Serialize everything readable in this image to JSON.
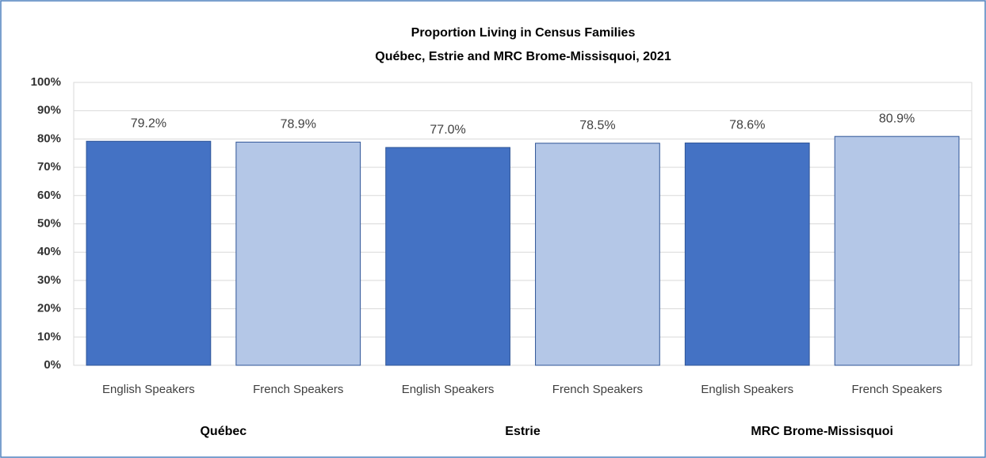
{
  "chart_data": {
    "type": "bar",
    "title": "Proportion Living in Census Families",
    "subtitle": "Québec, Estrie and MRC Brome-Missisquoi,  2021",
    "categories": [
      "English Speakers",
      "French Speakers",
      "English Speakers",
      "French Speakers",
      "English Speakers",
      "French Speakers"
    ],
    "groups": [
      "Québec",
      "Estrie",
      "MRC Brome-Missisquoi"
    ],
    "values": [
      79.2,
      78.9,
      77.0,
      78.5,
      78.6,
      80.9
    ],
    "value_labels": [
      "79.2%",
      "78.9%",
      "77.0%",
      "78.5%",
      "78.6%",
      "80.9%"
    ],
    "colors": [
      "#4472c4",
      "#b4c7e7",
      "#4472c4",
      "#b4c7e7",
      "#4472c4",
      "#b4c7e7"
    ],
    "ylim": [
      0,
      100
    ],
    "yticks": [
      {
        "value": 0,
        "label": "0%"
      },
      {
        "value": 10,
        "label": "10%"
      },
      {
        "value": 20,
        "label": "20%"
      },
      {
        "value": 30,
        "label": "30%"
      },
      {
        "value": 40,
        "label": "40%"
      },
      {
        "value": 50,
        "label": "50%"
      },
      {
        "value": 60,
        "label": "60%"
      },
      {
        "value": 70,
        "label": "70%"
      },
      {
        "value": 80,
        "label": "80%"
      },
      {
        "value": 90,
        "label": "90%"
      },
      {
        "value": 100,
        "label": "100%"
      }
    ],
    "grid": true
  }
}
